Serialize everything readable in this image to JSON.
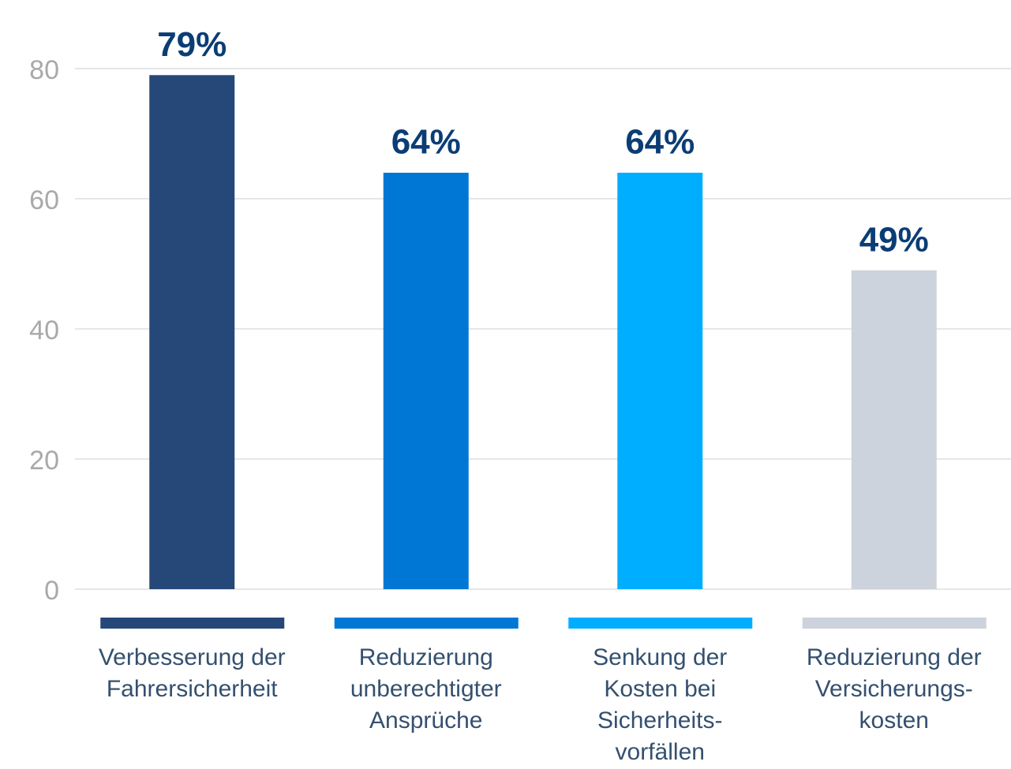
{
  "chart_data": {
    "type": "bar",
    "categories": [
      [
        "Verbesserung der",
        "Fahrersicherheit"
      ],
      [
        "Reduzierung",
        "unberechtigter",
        "Ansprüche"
      ],
      [
        "Senkung der",
        "Kosten bei",
        "Sicherheits-",
        "vorfällen"
      ],
      [
        "Reduzierung der",
        "Versicherungs-",
        "kosten"
      ]
    ],
    "values": [
      79,
      64,
      64,
      49
    ],
    "value_labels": [
      "79%",
      "64%",
      "64%",
      "49%"
    ],
    "colors": [
      "#264878",
      "#0077d4",
      "#00aeff",
      "#cdd3dc"
    ],
    "ylim": [
      0,
      80
    ],
    "yticks": [
      0,
      20,
      40,
      60,
      80
    ],
    "grid": true
  }
}
